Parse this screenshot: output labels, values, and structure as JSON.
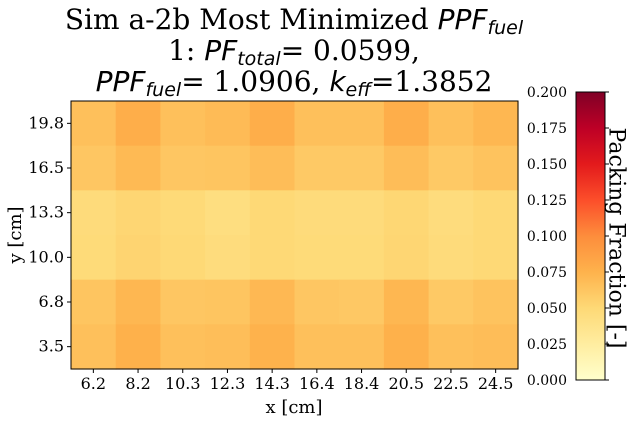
{
  "title": {
    "line1": "Sim a-2b Most Minimized ",
    "line1_sym": "PPF",
    "line1_sub": "fuel",
    "line2_pre": "1: ",
    "line2_sym": "PF",
    "line2_sub": "total",
    "line2_val": "= 0.0599,",
    "line3_sym": "PPF",
    "line3_sub": "fuel",
    "line3_mid": "= 1.0906, ",
    "line3_sym2": "k",
    "line3_sub2": "eff",
    "line3_val": "=1.3852"
  },
  "chart_data": {
    "type": "heatmap",
    "xlabel": "x [cm]",
    "ylabel": "y [cm]",
    "x_ticks": [
      "6.2",
      "8.2",
      "10.3",
      "12.3",
      "14.3",
      "16.4",
      "18.4",
      "20.5",
      "22.5",
      "24.5"
    ],
    "y_ticks": [
      "19.8",
      "16.5",
      "13.3",
      "10.0",
      "6.8",
      "3.5"
    ],
    "values": [
      [
        0.066,
        0.078,
        0.066,
        0.069,
        0.078,
        0.066,
        0.066,
        0.078,
        0.066,
        0.072
      ],
      [
        0.062,
        0.07,
        0.062,
        0.063,
        0.068,
        0.06,
        0.06,
        0.068,
        0.06,
        0.064
      ],
      [
        0.047,
        0.052,
        0.049,
        0.044,
        0.05,
        0.047,
        0.047,
        0.051,
        0.046,
        0.05
      ],
      [
        0.048,
        0.053,
        0.05,
        0.046,
        0.05,
        0.048,
        0.048,
        0.052,
        0.047,
        0.05
      ],
      [
        0.063,
        0.072,
        0.062,
        0.063,
        0.071,
        0.062,
        0.061,
        0.072,
        0.06,
        0.064
      ],
      [
        0.066,
        0.076,
        0.066,
        0.067,
        0.075,
        0.066,
        0.066,
        0.076,
        0.066,
        0.068
      ]
    ],
    "colorbar": {
      "label": "Packing Fraction [-]",
      "range": [
        0,
        0.2
      ],
      "ticks": [
        "0.000",
        "0.025",
        "0.050",
        "0.075",
        "0.100",
        "0.125",
        "0.150",
        "0.175",
        "0.200"
      ],
      "colormap": "YlOrRd"
    }
  }
}
